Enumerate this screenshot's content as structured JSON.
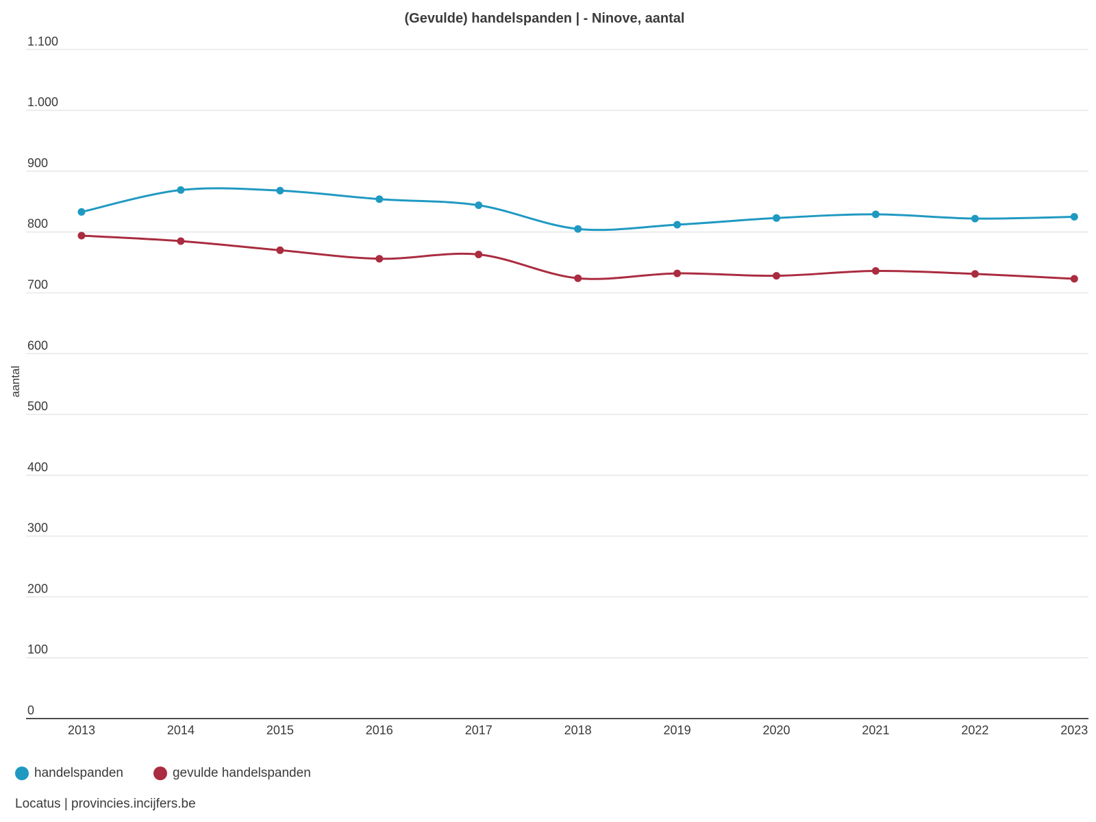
{
  "title": "(Gevulde) handelspanden | - Ninove, aantal",
  "source": "Locatus | provincies.incijfers.be",
  "legend": [
    {
      "label": "handelspanden",
      "color": "#1f99c2"
    },
    {
      "label": "gevulde handelspanden",
      "color": "#aa2c40"
    }
  ],
  "chart_data": {
    "type": "line",
    "title": "(Gevulde) handelspanden | - Ninove, aantal",
    "xlabel": "",
    "ylabel": "aantal",
    "categories": [
      "2013",
      "2014",
      "2015",
      "2016",
      "2017",
      "2018",
      "2019",
      "2020",
      "2021",
      "2022",
      "2023"
    ],
    "series": [
      {
        "name": "handelspanden",
        "color": "#1f99c2",
        "values": [
          833,
          869,
          868,
          854,
          844,
          805,
          812,
          823,
          829,
          822,
          825
        ]
      },
      {
        "name": "gevulde handelspanden",
        "color": "#aa2c40",
        "values": [
          794,
          785,
          770,
          756,
          763,
          724,
          732,
          728,
          736,
          731,
          723
        ]
      }
    ],
    "ylim": [
      0,
      1100
    ],
    "yticks": [
      0,
      100,
      200,
      300,
      400,
      500,
      600,
      700,
      800,
      900,
      1000,
      1100
    ],
    "ytick_labels": [
      "0",
      "100",
      "200",
      "300",
      "400",
      "500",
      "600",
      "700",
      "800",
      "900",
      "1.000",
      "1.100"
    ],
    "grid": true,
    "smooth": true,
    "legend_position": "bottom-left",
    "colors": {
      "gridline": "#ececec",
      "axis_line": "#4d4d4d",
      "tick_text": "#3a3a3a"
    }
  }
}
